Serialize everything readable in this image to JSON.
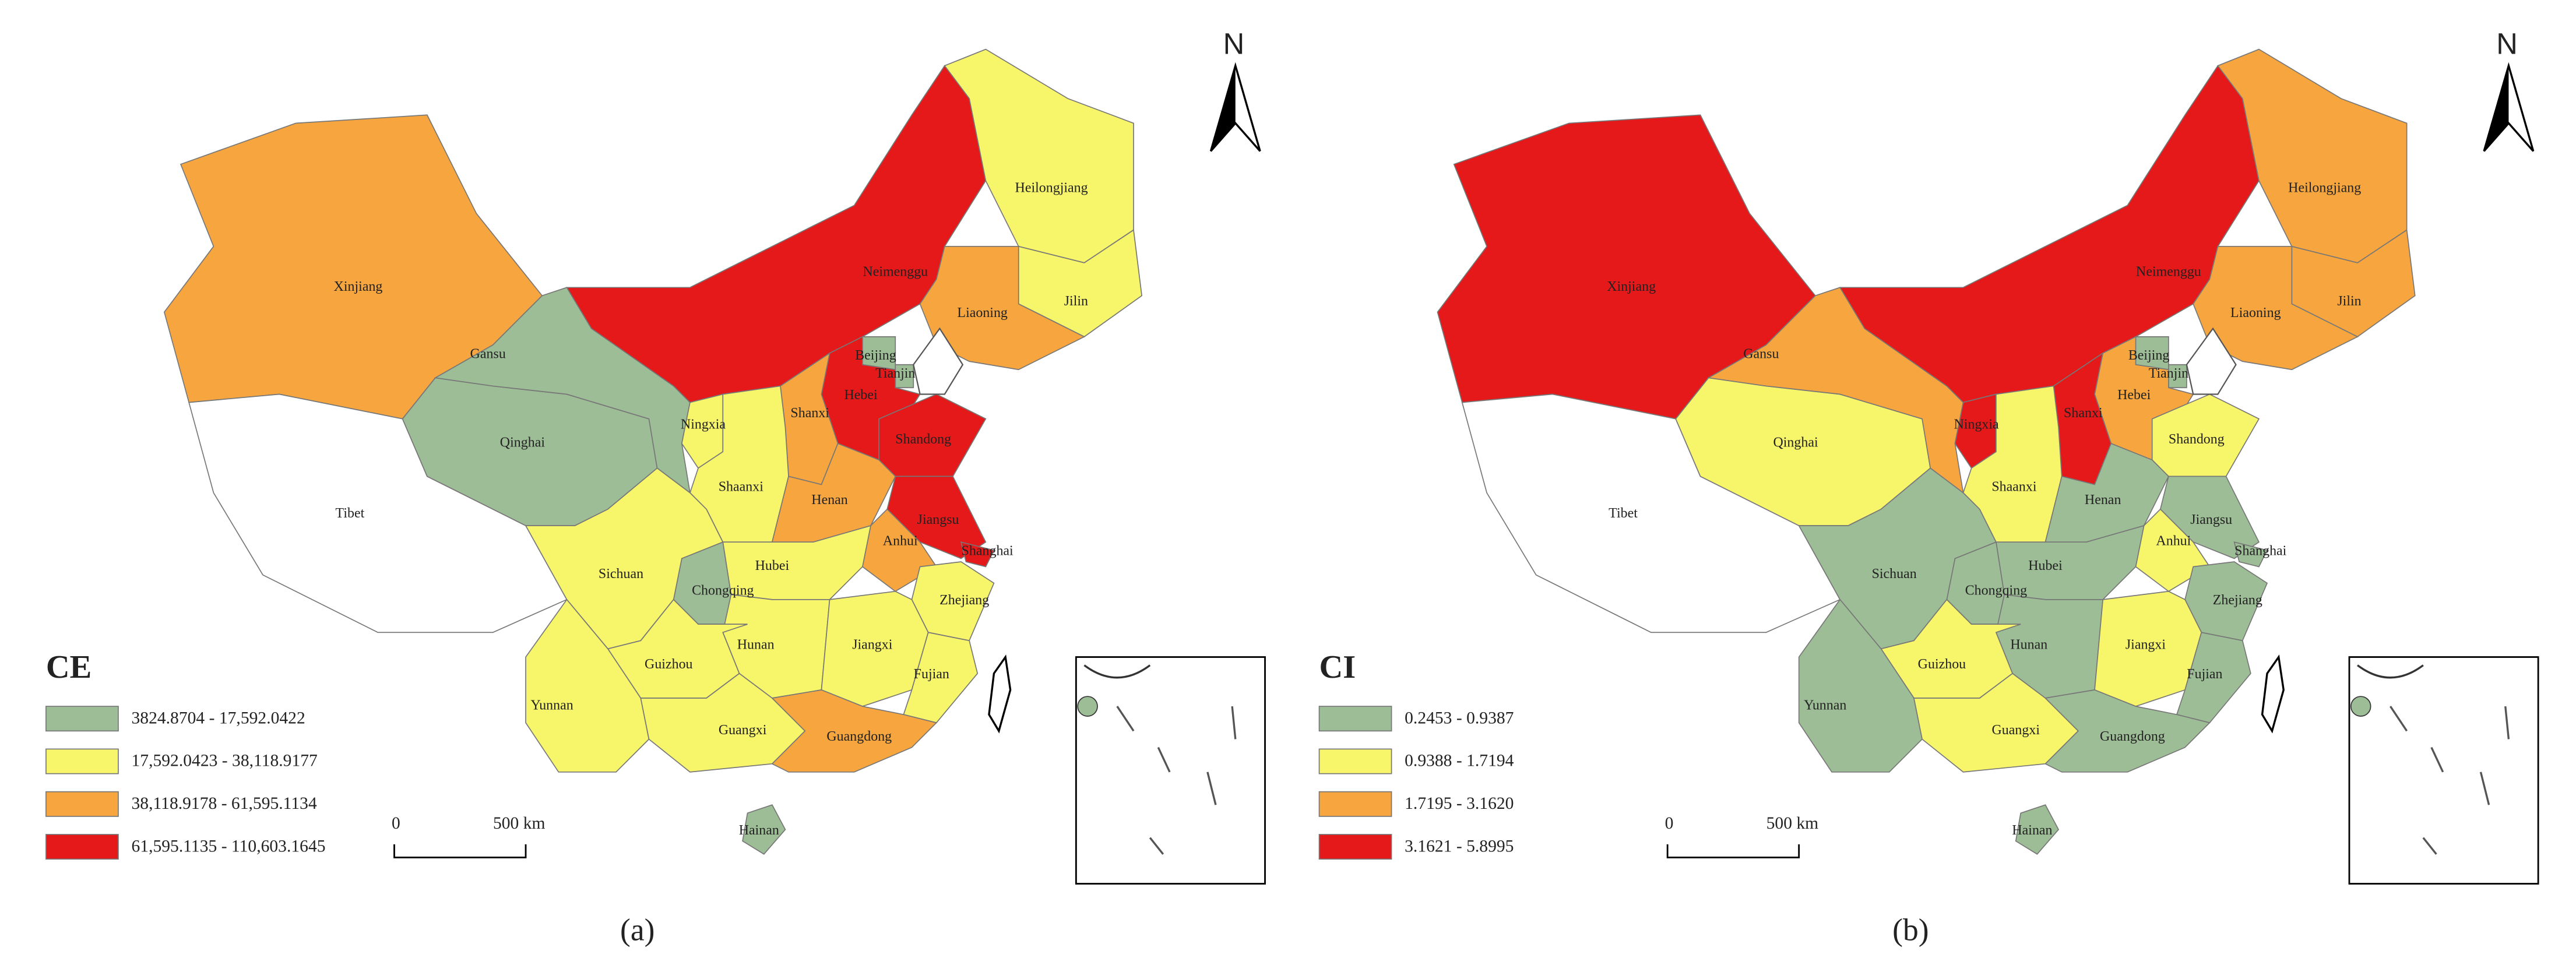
{
  "panels": [
    {
      "caption": "(a)",
      "north": "N",
      "scale_start": "0",
      "scale_end": "500 km",
      "legend": {
        "title": "CE",
        "classes": [
          {
            "label": "3824.8704 - 17,592.0422",
            "color": "#9dbd96"
          },
          {
            "label": "17,592.0423 - 38,118.9177",
            "color": "#f7f56a"
          },
          {
            "label": "38,118.9178 - 61,595.1134",
            "color": "#f7a63f"
          },
          {
            "label": "61,595.1135 - 110,603.1645",
            "color": "#e5181a"
          }
        ]
      },
      "provinces": [
        {
          "label": "Xinjiang",
          "color": "#f7a63f"
        },
        {
          "label": "Tibet",
          "color": "#ffffff"
        },
        {
          "label": "Qinghai",
          "color": "#9dbd96"
        },
        {
          "label": "Gansu",
          "color": "#9dbd96"
        },
        {
          "label": "Neimenggu",
          "color": "#e5181a"
        },
        {
          "label": "Heilongjiang",
          "color": "#f7f56a"
        },
        {
          "label": "Jilin",
          "color": "#f7f56a"
        },
        {
          "label": "Liaoning",
          "color": "#f7a63f"
        },
        {
          "label": "Beijing",
          "color": "#9dbd96"
        },
        {
          "label": "Tianjin",
          "color": "#9dbd96"
        },
        {
          "label": "Hebei",
          "color": "#e5181a"
        },
        {
          "label": "Shanxi",
          "color": "#f7a63f"
        },
        {
          "label": "Shandong",
          "color": "#e5181a"
        },
        {
          "label": "Ningxia",
          "color": "#f7f56a"
        },
        {
          "label": "Shaanxi",
          "color": "#f7f56a"
        },
        {
          "label": "Henan",
          "color": "#f7a63f"
        },
        {
          "label": "Jiangsu",
          "color": "#e5181a"
        },
        {
          "label": "Anhui",
          "color": "#f7a63f"
        },
        {
          "label": "Shanghai",
          "color": "#e5181a"
        },
        {
          "label": "Hubei",
          "color": "#f7f56a"
        },
        {
          "label": "Chongqing",
          "color": "#9dbd96"
        },
        {
          "label": "Sichuan",
          "color": "#f7f56a"
        },
        {
          "label": "Zhejiang",
          "color": "#f7f56a"
        },
        {
          "label": "Hunan",
          "color": "#f7f56a"
        },
        {
          "label": "Jiangxi",
          "color": "#f7f56a"
        },
        {
          "label": "Guizhou",
          "color": "#f7f56a"
        },
        {
          "label": "Fujian",
          "color": "#f7f56a"
        },
        {
          "label": "Yunnan",
          "color": "#f7f56a"
        },
        {
          "label": "Guangxi",
          "color": "#f7f56a"
        },
        {
          "label": "Guangdong",
          "color": "#f7a63f"
        },
        {
          "label": "Hainan",
          "color": "#9dbd96"
        }
      ]
    },
    {
      "caption": "(b)",
      "north": "N",
      "scale_start": "0",
      "scale_end": "500 km",
      "legend": {
        "title": "CI",
        "classes": [
          {
            "label": "0.2453 - 0.9387",
            "color": "#9dbd96"
          },
          {
            "label": "0.9388 - 1.7194",
            "color": "#f7f56a"
          },
          {
            "label": "1.7195 - 3.1620",
            "color": "#f7a63f"
          },
          {
            "label": "3.1621 - 5.8995",
            "color": "#e5181a"
          }
        ]
      },
      "provinces": [
        {
          "label": "Xinjiang",
          "color": "#e5181a"
        },
        {
          "label": "Tibet",
          "color": "#ffffff"
        },
        {
          "label": "Qinghai",
          "color": "#f7f56a"
        },
        {
          "label": "Gansu",
          "color": "#f7a63f"
        },
        {
          "label": "Neimenggu",
          "color": "#e5181a"
        },
        {
          "label": "Heilongjiang",
          "color": "#f7a63f"
        },
        {
          "label": "Jilin",
          "color": "#f7a63f"
        },
        {
          "label": "Liaoning",
          "color": "#f7a63f"
        },
        {
          "label": "Beijing",
          "color": "#9dbd96"
        },
        {
          "label": "Tianjin",
          "color": "#9dbd96"
        },
        {
          "label": "Hebei",
          "color": "#f7a63f"
        },
        {
          "label": "Shanxi",
          "color": "#e5181a"
        },
        {
          "label": "Shandong",
          "color": "#f7f56a"
        },
        {
          "label": "Ningxia",
          "color": "#e5181a"
        },
        {
          "label": "Shaanxi",
          "color": "#f7f56a"
        },
        {
          "label": "Henan",
          "color": "#9dbd96"
        },
        {
          "label": "Jiangsu",
          "color": "#9dbd96"
        },
        {
          "label": "Anhui",
          "color": "#f7f56a"
        },
        {
          "label": "Shanghai",
          "color": "#9dbd96"
        },
        {
          "label": "Hubei",
          "color": "#9dbd96"
        },
        {
          "label": "Chongqing",
          "color": "#9dbd96"
        },
        {
          "label": "Sichuan",
          "color": "#9dbd96"
        },
        {
          "label": "Zhejiang",
          "color": "#9dbd96"
        },
        {
          "label": "Hunan",
          "color": "#9dbd96"
        },
        {
          "label": "Jiangxi",
          "color": "#f7f56a"
        },
        {
          "label": "Guizhou",
          "color": "#f7f56a"
        },
        {
          "label": "Fujian",
          "color": "#9dbd96"
        },
        {
          "label": "Yunnan",
          "color": "#9dbd96"
        },
        {
          "label": "Guangxi",
          "color": "#f7f56a"
        },
        {
          "label": "Guangdong",
          "color": "#9dbd96"
        },
        {
          "label": "Hainan",
          "color": "#9dbd96"
        }
      ]
    }
  ]
}
